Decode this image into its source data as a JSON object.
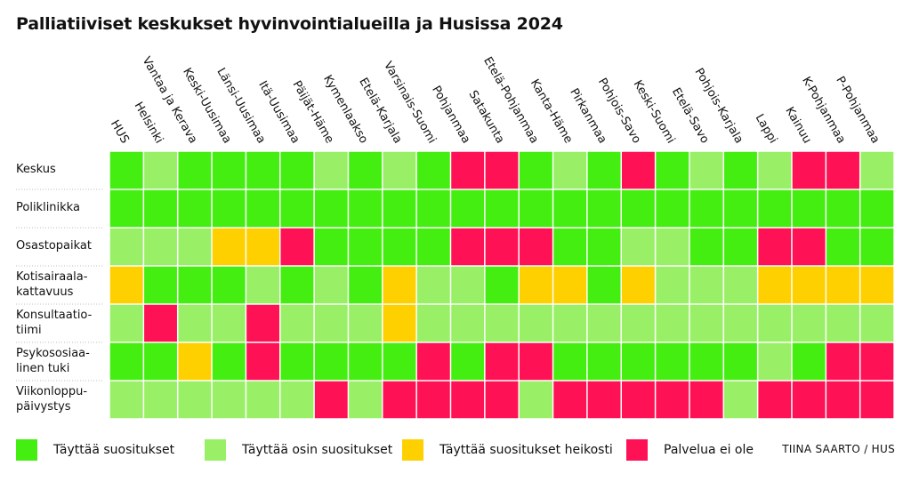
{
  "title": "Palliatiiviset keskukset hyvinvointialueilla ja Husissa 2024",
  "credit": "TIINA SAARTO / HUS",
  "colors": {
    "full": "#44ee11",
    "partial": "#99f066",
    "weak": "#ffd000",
    "none": "#ff1155"
  },
  "legend": [
    {
      "key": "full",
      "label": "Täyttää suositukset"
    },
    {
      "key": "partial",
      "label": "Täyttää osin suositukset"
    },
    {
      "key": "weak",
      "label": "Täyttää suositukset heikosti"
    },
    {
      "key": "none",
      "label": "Palvelua ei ole"
    }
  ],
  "chart_data": {
    "type": "heatmap",
    "columns": [
      "HUS",
      "Helsinki",
      "Vantaa ja Kerava",
      "Keski-Uusimaa",
      "Länsi-Uusimaa",
      "Itä-Uusimaa",
      "Päijät-Häme",
      "Kymenlaakso",
      "Etelä-Karjala",
      "Varsinais-Suomi",
      "Pohjanmaa",
      "Satakunta",
      "Etelä-Pohjanmaa",
      "Kanta-Häme",
      "Pirkanmaa",
      "Pohjois-Savo",
      "Keski-Suomi",
      "Etelä-Savo",
      "Pohjois-Karjala",
      "Lappi",
      "Kainuu",
      "K-Pohjanmaa",
      "P-Pohjanmaa"
    ],
    "rows": [
      {
        "label": [
          "Keskus"
        ],
        "values": [
          "full",
          "partial",
          "full",
          "full",
          "full",
          "full",
          "partial",
          "full",
          "partial",
          "full",
          "none",
          "none",
          "full",
          "partial",
          "full",
          "none",
          "full",
          "partial",
          "full",
          "partial",
          "none",
          "none",
          "partial"
        ]
      },
      {
        "label": [
          "Poliklinikka"
        ],
        "values": [
          "full",
          "full",
          "full",
          "full",
          "full",
          "full",
          "full",
          "full",
          "full",
          "full",
          "full",
          "full",
          "full",
          "full",
          "full",
          "full",
          "full",
          "full",
          "full",
          "full",
          "full",
          "full",
          "full"
        ]
      },
      {
        "label": [
          "Osastopaikat"
        ],
        "values": [
          "partial",
          "partial",
          "partial",
          "weak",
          "weak",
          "none",
          "full",
          "full",
          "full",
          "full",
          "none",
          "none",
          "none",
          "full",
          "full",
          "partial",
          "partial",
          "full",
          "full",
          "none",
          "none",
          "full",
          "full"
        ]
      },
      {
        "label": [
          "Kotisairaala-",
          "kattavuus"
        ],
        "values": [
          "weak",
          "full",
          "full",
          "full",
          "partial",
          "full",
          "partial",
          "full",
          "weak",
          "partial",
          "partial",
          "full",
          "weak",
          "weak",
          "full",
          "weak",
          "partial",
          "partial",
          "partial",
          "weak",
          "weak",
          "weak",
          "weak"
        ]
      },
      {
        "label": [
          "Konsultaatio-",
          "tiimi"
        ],
        "values": [
          "partial",
          "none",
          "partial",
          "partial",
          "none",
          "partial",
          "partial",
          "partial",
          "weak",
          "partial",
          "partial",
          "partial",
          "partial",
          "partial",
          "partial",
          "partial",
          "partial",
          "partial",
          "partial",
          "partial",
          "partial",
          "partial",
          "partial"
        ]
      },
      {
        "label": [
          "Psykososiaa-",
          "linen tuki"
        ],
        "values": [
          "full",
          "full",
          "weak",
          "full",
          "none",
          "full",
          "full",
          "full",
          "full",
          "none",
          "full",
          "none",
          "none",
          "full",
          "full",
          "full",
          "full",
          "full",
          "full",
          "partial",
          "full",
          "none",
          "none"
        ]
      },
      {
        "label": [
          "Viikonloppu-",
          "päivystys"
        ],
        "values": [
          "partial",
          "partial",
          "partial",
          "partial",
          "partial",
          "partial",
          "none",
          "partial",
          "none",
          "none",
          "none",
          "none",
          "partial",
          "none",
          "none",
          "none",
          "none",
          "none",
          "partial",
          "none",
          "none",
          "none",
          "none"
        ]
      }
    ]
  }
}
